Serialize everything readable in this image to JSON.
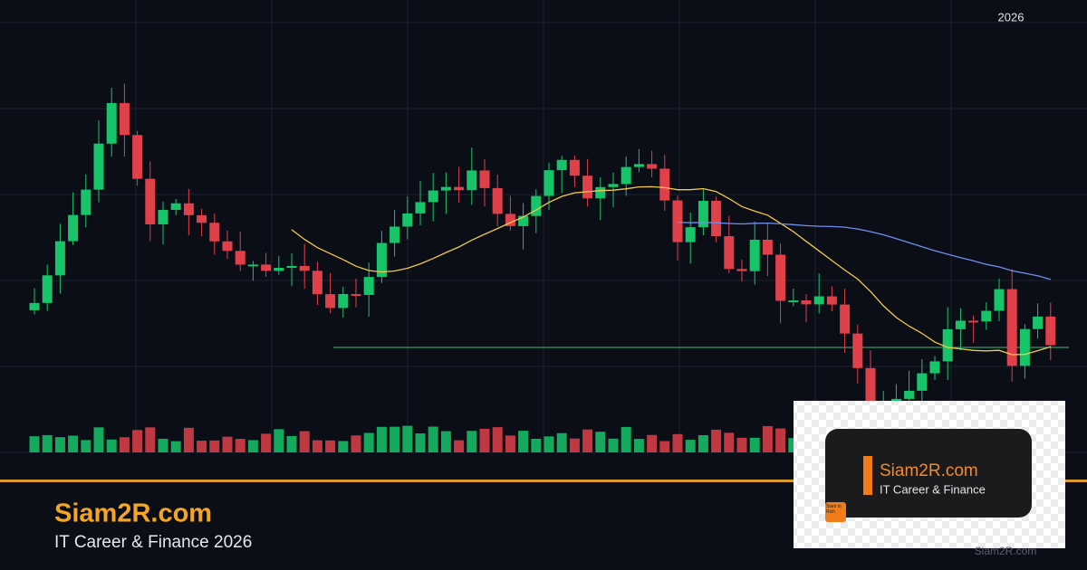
{
  "header": {
    "year": "2026"
  },
  "brand": {
    "title": "Siam2R.com",
    "subtitle": "IT Career & Finance 2026"
  },
  "logo": {
    "title": "Siam2R.com",
    "subtitle": "IT Career & Finance",
    "badge": "Siam to Rich"
  },
  "footer": {
    "site": "Siam2R.com"
  }
}
